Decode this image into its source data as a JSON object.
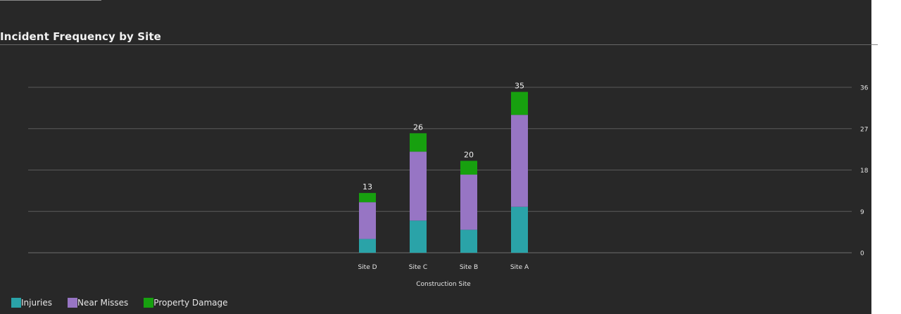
{
  "chart_data": {
    "type": "bar",
    "stacked": true,
    "title": "Incident Frequency by Site",
    "xlabel": "Construction Site",
    "ylabel": "",
    "categories": [
      "Site D",
      "Site C",
      "Site B",
      "Site A"
    ],
    "series": [
      {
        "name": "Injuries",
        "color": "#2aa3a8",
        "values": [
          3,
          7,
          5,
          10
        ]
      },
      {
        "name": "Near Misses",
        "color": "#9775c4",
        "values": [
          8,
          15,
          12,
          20
        ]
      },
      {
        "name": "Property Damage",
        "color": "#17a00f",
        "values": [
          2,
          4,
          3,
          5
        ]
      }
    ],
    "totals": [
      13,
      26,
      20,
      35
    ],
    "ylim": [
      0,
      36
    ],
    "yticks": [
      0,
      9,
      18,
      27,
      36
    ],
    "y_axis_side": "right",
    "grid": true,
    "legend_position": "bottom-left"
  }
}
